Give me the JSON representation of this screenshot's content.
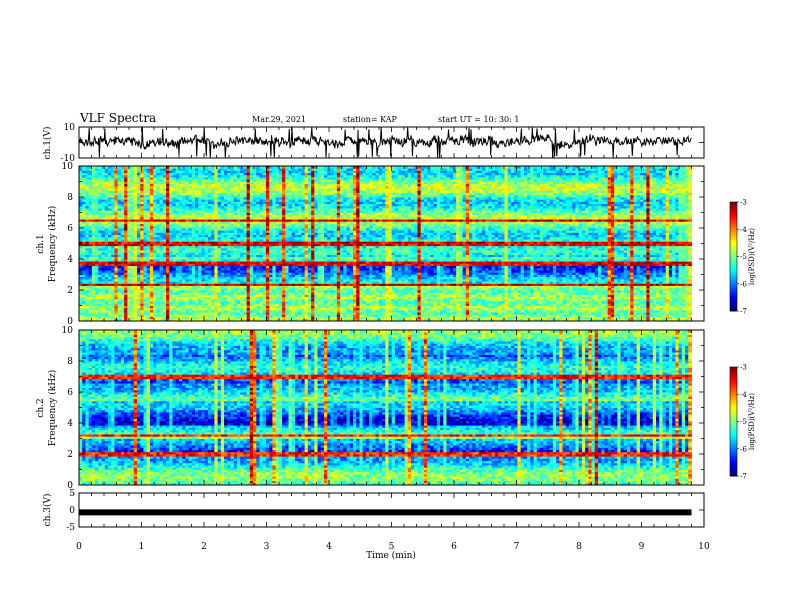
{
  "header": {
    "title": "VLF Spectra",
    "date": "Mar.29, 2021",
    "station": "station= KAP",
    "start": "start  UT  =   10: 30: 1"
  },
  "chart_data": [
    {
      "type": "line",
      "name": "ch1-waveform",
      "ylabel": "ch.1(V)",
      "ylim": [
        -10,
        10
      ],
      "yticks": [
        "10",
        "-10"
      ],
      "xlim": [
        0,
        10
      ],
      "approx_level": 0,
      "approx_amplitude": 5
    },
    {
      "type": "heatmap",
      "name": "ch1-spectrogram",
      "ylabel_line1": "ch.1",
      "ylabel_line2": "Frequency (kHz)",
      "ylim": [
        0,
        10
      ],
      "yticks": [
        "0",
        "2",
        "4",
        "6",
        "8",
        "10"
      ],
      "xlim": [
        0,
        10
      ],
      "data_end_min": 9.8,
      "colorbar": {
        "label": "log(PSD)(V²/Hz)",
        "range": [
          -7,
          -3
        ],
        "ticks": [
          "-3",
          "-4",
          "-5",
          "-6",
          "-7"
        ]
      }
    },
    {
      "type": "heatmap",
      "name": "ch2-spectrogram",
      "ylabel_line1": "ch.2",
      "ylabel_line2": "Frequency (kHz)",
      "ylim": [
        0,
        10
      ],
      "yticks": [
        "0",
        "2",
        "4",
        "6",
        "8",
        "10"
      ],
      "xlim": [
        0,
        10
      ],
      "data_end_min": 9.8,
      "colorbar": {
        "label": "log(PSD)(V²/Hz)",
        "range": [
          -7,
          -3
        ],
        "ticks": [
          "-3",
          "-4",
          "-5",
          "-6",
          "-7"
        ]
      }
    },
    {
      "type": "line",
      "name": "ch3-waveform",
      "ylabel": "ch.3(V)",
      "ylim": [
        -5,
        5
      ],
      "yticks": [
        "5",
        "0",
        "-5"
      ],
      "xlim": [
        0,
        10
      ],
      "approx_level": -0.7
    }
  ],
  "xaxis": {
    "label": "Time  (min)",
    "ticks": [
      "0",
      "1",
      "2",
      "3",
      "4",
      "5",
      "6",
      "7",
      "8",
      "9",
      "10"
    ],
    "range": [
      0,
      10
    ]
  }
}
